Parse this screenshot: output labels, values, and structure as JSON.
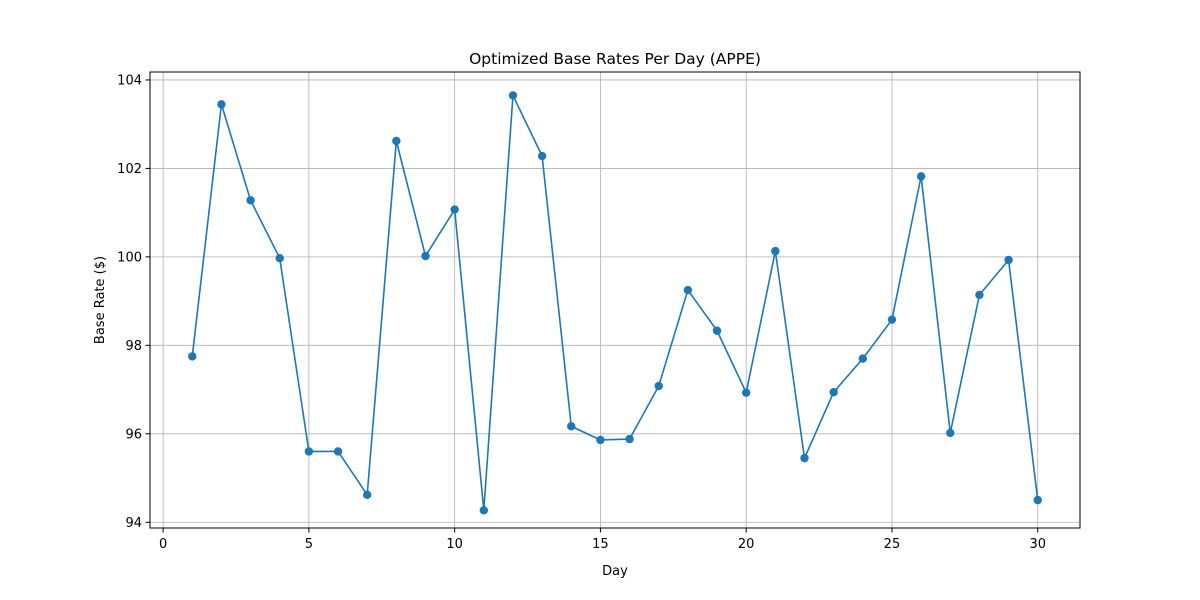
{
  "chart_data": {
    "type": "line",
    "title": "Optimized Base Rates Per Day (APPE)",
    "xlabel": "Day",
    "ylabel": "Base Rate ($)",
    "xlim": [
      -0.45,
      31.45
    ],
    "ylim": [
      93.87,
      104.18
    ],
    "xticks": [
      0,
      5,
      10,
      15,
      20,
      25,
      30
    ],
    "yticks": [
      94,
      96,
      98,
      100,
      102,
      104
    ],
    "grid": true,
    "line_color": "#1f77b4",
    "marker": "circle",
    "series": [
      {
        "x": [
          1,
          2,
          3,
          4,
          5,
          6,
          7,
          8,
          9,
          10,
          11,
          12,
          13,
          14,
          15,
          16,
          17,
          18,
          19,
          20,
          21,
          22,
          23,
          24,
          25,
          26,
          27,
          28,
          29,
          30
        ],
        "values": [
          97.75,
          103.45,
          101.28,
          99.97,
          95.6,
          95.6,
          94.62,
          102.62,
          100.02,
          101.07,
          94.27,
          103.65,
          102.28,
          96.17,
          95.86,
          95.88,
          97.08,
          99.25,
          98.33,
          96.93,
          100.13,
          95.45,
          96.94,
          97.7,
          98.58,
          101.82,
          96.02,
          99.14,
          99.93,
          94.5
        ]
      }
    ]
  }
}
